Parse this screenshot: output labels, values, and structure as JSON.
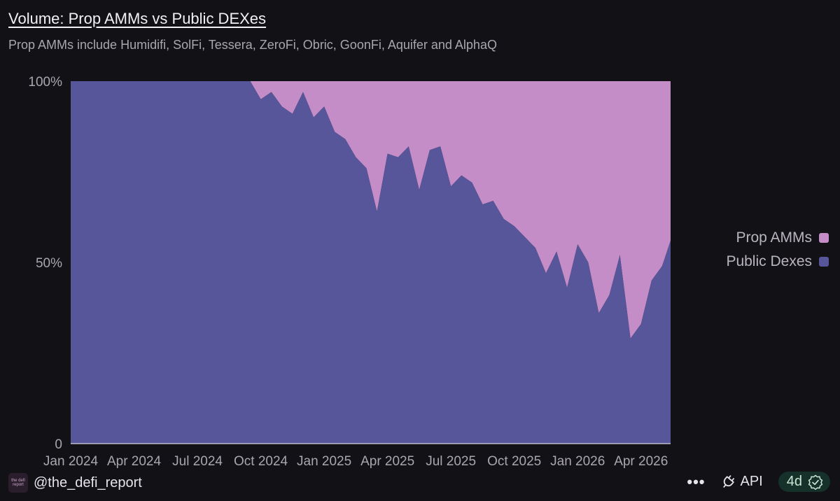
{
  "header": {
    "title": "Volume: Prop AMMs vs Public DEXes",
    "subtitle": "Prop AMMs include Humidifi, SolFi, Tessera, ZeroFi, Obric, GoonFi, Aquifer and AlphaQ"
  },
  "chart_data": {
    "type": "area",
    "stacked": "percent",
    "title": "Volume: Prop AMMs vs Public DEXes",
    "xlabel": "",
    "ylabel": "",
    "ylim": [
      0,
      100
    ],
    "yticks": [
      {
        "value": 0,
        "label": "0"
      },
      {
        "value": 50,
        "label": "50%"
      },
      {
        "value": 100,
        "label": "100%"
      }
    ],
    "xticks": [
      "Jan 2024",
      "Apr 2024",
      "Jul 2024",
      "Oct 2024",
      "Jan 2025",
      "Apr 2025",
      "Jul 2025",
      "Oct 2025",
      "Jan 2026",
      "Apr 2026"
    ],
    "x_months_since_jan_2024": [
      0,
      3,
      3.5,
      4,
      4.5,
      5,
      5.5,
      6,
      6.5,
      7,
      7.5,
      8,
      8.5,
      9,
      9.5,
      10,
      10.5,
      11,
      11.5,
      12,
      12.5,
      13,
      13.5,
      14,
      14.5,
      15,
      15.5,
      16,
      16.5,
      17,
      17.5,
      18,
      18.5,
      19,
      19.5,
      20,
      20.5,
      21,
      21.5,
      22,
      22.5,
      23,
      23.5,
      24,
      24.5,
      25,
      25.5,
      26,
      26.5,
      27,
      27.5,
      28,
      28.4
    ],
    "legend": {
      "position": "right"
    },
    "series": [
      {
        "name": "Public Dexes",
        "color": "#58569a",
        "values": [
          100,
          100,
          100,
          100,
          100,
          100,
          100,
          100,
          100,
          100,
          100,
          100,
          100,
          95,
          97,
          93,
          91,
          97,
          90,
          93,
          86,
          84,
          79,
          76,
          64,
          80,
          79,
          82,
          70,
          81,
          82,
          71,
          74,
          72,
          66,
          67,
          62,
          60,
          57,
          54,
          47,
          53,
          43,
          55,
          50,
          36,
          41,
          52,
          29,
          33,
          45,
          49,
          56
        ]
      },
      {
        "name": "Prop AMMs",
        "color": "#c58dc8",
        "values": [
          0,
          0,
          0,
          0,
          0,
          0,
          0,
          0,
          0,
          0,
          0,
          0,
          0,
          5,
          3,
          7,
          9,
          3,
          10,
          7,
          14,
          16,
          21,
          24,
          36,
          20,
          21,
          18,
          30,
          19,
          18,
          29,
          26,
          28,
          34,
          33,
          38,
          40,
          43,
          46,
          53,
          47,
          57,
          45,
          50,
          64,
          59,
          48,
          71,
          67,
          55,
          51,
          44
        ]
      }
    ]
  },
  "legend": {
    "prop_label": "Prop AMMs",
    "public_label": "Public Dexes",
    "prop_color": "#c58dc8",
    "public_color": "#58569a"
  },
  "footer": {
    "avatar_text": "the defi report",
    "handle": "@the_defi_report",
    "more_label": "•••",
    "api_label": "API",
    "badge_label": "4d",
    "more_icon": "more-icon",
    "api_icon": "plug-icon",
    "badge_icon": "check-badge-icon"
  }
}
